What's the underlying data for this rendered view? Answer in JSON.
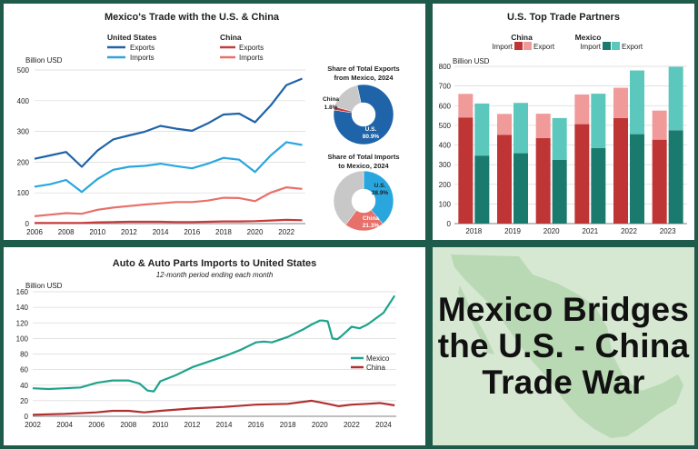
{
  "colors": {
    "us_exports": "#1f63a8",
    "us_imports": "#2aa6df",
    "cn_exports": "#c63b3b",
    "cn_imports": "#e8706a",
    "china_bar_dark": "#bf3434",
    "china_bar_light": "#f09a9a",
    "mexico_bar_dark": "#1b7a6e",
    "mexico_bar_light": "#5cc7bc",
    "auto_mexico": "#1ea38c",
    "auto_china": "#b13131",
    "pie_grey": "#c8c8c8"
  },
  "panel_trade": {
    "title": "Mexico's Trade with the U.S. & China",
    "y_unit": "Billion USD",
    "legend": {
      "us_group": "United States",
      "cn_group": "China",
      "exports": "Exports",
      "imports": "Imports"
    },
    "pie_exports": {
      "title_line1": "Share of Total Exports",
      "title_line2": "from Mexico, 2024",
      "us_label": "U.S.",
      "us_value": "80.9%",
      "cn_label": "China",
      "cn_value": "1.8%"
    },
    "pie_imports": {
      "title_line1": "Share of Total Imports",
      "title_line2": "to Mexico, 2024",
      "us_label": "U.S.",
      "us_value": "38.9%",
      "cn_label": "China",
      "cn_value": "21.3%"
    }
  },
  "panel_partners": {
    "title": "U.S. Top Trade Partners",
    "y_unit": "Billion USD",
    "legend": {
      "china": "China",
      "mexico": "Mexico",
      "import": "Import",
      "export": "Export"
    }
  },
  "panel_auto": {
    "title": "Auto & Auto Parts Imports to United States",
    "subtitle": "12-month period ending each month",
    "y_unit": "Billion USD",
    "legend": {
      "mexico": "Mexico",
      "china": "China"
    }
  },
  "headline": {
    "line1": "Mexico Bridges",
    "line2": "the U.S. - China",
    "line3": "Trade War"
  },
  "chart_data": [
    {
      "type": "line",
      "title": "Mexico's Trade with the U.S. & China",
      "ylabel": "Billion USD",
      "x": [
        2006,
        2007,
        2008,
        2009,
        2010,
        2011,
        2012,
        2013,
        2014,
        2015,
        2016,
        2017,
        2018,
        2019,
        2020,
        2021,
        2022,
        2023
      ],
      "ylim": [
        0,
        500
      ],
      "xticks": [
        2006,
        2008,
        2010,
        2012,
        2014,
        2016,
        2018,
        2020,
        2022
      ],
      "yticks": [
        0,
        100,
        200,
        300,
        400,
        500
      ],
      "series": [
        {
          "name": "United States Exports",
          "values": [
            211,
            222,
            233,
            185,
            238,
            274,
            287,
            299,
            318,
            309,
            302,
            326,
            355,
            358,
            330,
            385,
            451,
            472
          ]
        },
        {
          "name": "United States Imports",
          "values": [
            120,
            128,
            142,
            103,
            145,
            175,
            185,
            188,
            195,
            187,
            180,
            195,
            214,
            208,
            168,
            222,
            265,
            256
          ]
        },
        {
          "name": "China Exports",
          "values": [
            2,
            2,
            2,
            2,
            4,
            5,
            6,
            6,
            6,
            5,
            5,
            6,
            7,
            7,
            8,
            10,
            12,
            11
          ]
        },
        {
          "name": "China Imports",
          "values": [
            24,
            29,
            34,
            32,
            45,
            52,
            57,
            62,
            66,
            70,
            70,
            75,
            84,
            83,
            73,
            101,
            118,
            113
          ]
        }
      ]
    },
    {
      "type": "pie",
      "title": "Share of Total Exports from Mexico, 2024",
      "slices": [
        {
          "name": "U.S.",
          "value": 80.9
        },
        {
          "name": "China",
          "value": 1.8
        },
        {
          "name": "Other",
          "value": 17.3
        }
      ]
    },
    {
      "type": "pie",
      "title": "Share of Total Imports to Mexico, 2024",
      "slices": [
        {
          "name": "U.S.",
          "value": 38.9
        },
        {
          "name": "China",
          "value": 21.3
        },
        {
          "name": "Other",
          "value": 39.8
        }
      ]
    },
    {
      "type": "bar",
      "title": "U.S. Top Trade Partners",
      "ylabel": "Billion USD",
      "categories": [
        "2018",
        "2019",
        "2020",
        "2021",
        "2022",
        "2023"
      ],
      "ylim": [
        0,
        800
      ],
      "yticks": [
        0,
        100,
        200,
        300,
        400,
        500,
        600,
        700,
        800
      ],
      "series": [
        {
          "name": "China Import",
          "values": [
            540,
            452,
            435,
            506,
            537,
            427
          ]
        },
        {
          "name": "China Export",
          "values": [
            120,
            106,
            124,
            151,
            154,
            148
          ]
        },
        {
          "name": "Mexico Import",
          "values": [
            346,
            358,
            325,
            385,
            455,
            475
          ]
        },
        {
          "name": "Mexico Export",
          "values": [
            265,
            256,
            212,
            276,
            324,
            323
          ]
        }
      ]
    },
    {
      "type": "line",
      "title": "Auto & Auto Parts Imports to United States",
      "subtitle": "12-month period ending each month",
      "ylabel": "Billion USD",
      "ylim": [
        0,
        160
      ],
      "xticks": [
        2002,
        2004,
        2006,
        2008,
        2010,
        2012,
        2014,
        2016,
        2018,
        2020,
        2022,
        2024
      ],
      "yticks": [
        0,
        20,
        40,
        60,
        80,
        100,
        120,
        140,
        160
      ],
      "series": [
        {
          "name": "Mexico",
          "x": [
            2002,
            2003,
            2004,
            2005,
            2006,
            2007,
            2008,
            2008.7,
            2009.2,
            2009.6,
            2010,
            2011,
            2012,
            2013,
            2014,
            2015,
            2016,
            2016.5,
            2017,
            2018,
            2019,
            2019.5,
            2020,
            2020.2,
            2020.5,
            2020.8,
            2021.1,
            2021.3,
            2022,
            2022.5,
            2023,
            2024,
            2024.7
          ],
          "values": [
            36,
            35,
            36,
            37,
            43,
            46,
            46,
            42,
            33,
            32,
            45,
            53,
            63,
            70,
            77,
            85,
            95,
            96,
            95,
            102,
            112,
            118,
            123,
            123,
            122,
            100,
            99,
            102,
            115,
            113,
            118,
            133,
            155
          ]
        },
        {
          "name": "China",
          "x": [
            2002,
            2004,
            2006,
            2007,
            2008,
            2009,
            2010,
            2012,
            2014,
            2016,
            2018,
            2019.5,
            2020.5,
            2021.2,
            2022,
            2023,
            2023.8,
            2024.7
          ],
          "values": [
            2,
            3,
            5,
            7,
            7,
            5,
            7,
            10,
            12,
            15,
            16,
            20,
            16,
            13,
            15,
            16,
            17,
            14
          ]
        }
      ]
    }
  ]
}
